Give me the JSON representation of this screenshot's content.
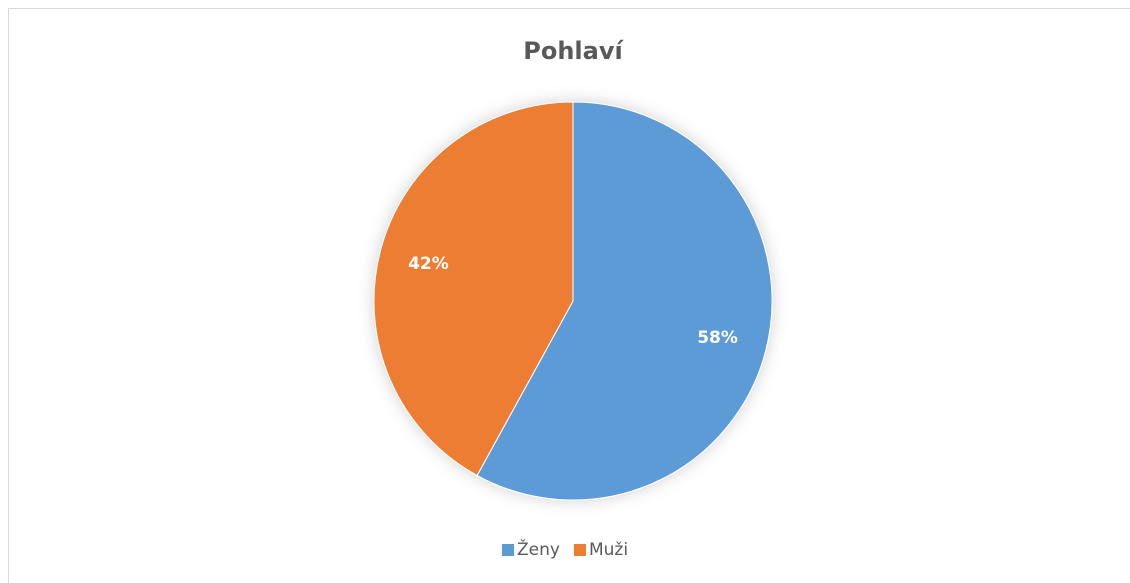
{
  "chart_data": {
    "type": "pie",
    "title": "Pohlaví",
    "categories": [
      "Ženy",
      "Muži"
    ],
    "values": [
      58,
      42
    ],
    "value_labels": [
      "58%",
      "42%"
    ],
    "colors": [
      "#5b9bd5",
      "#ed7d31"
    ],
    "legend": "bottom"
  }
}
